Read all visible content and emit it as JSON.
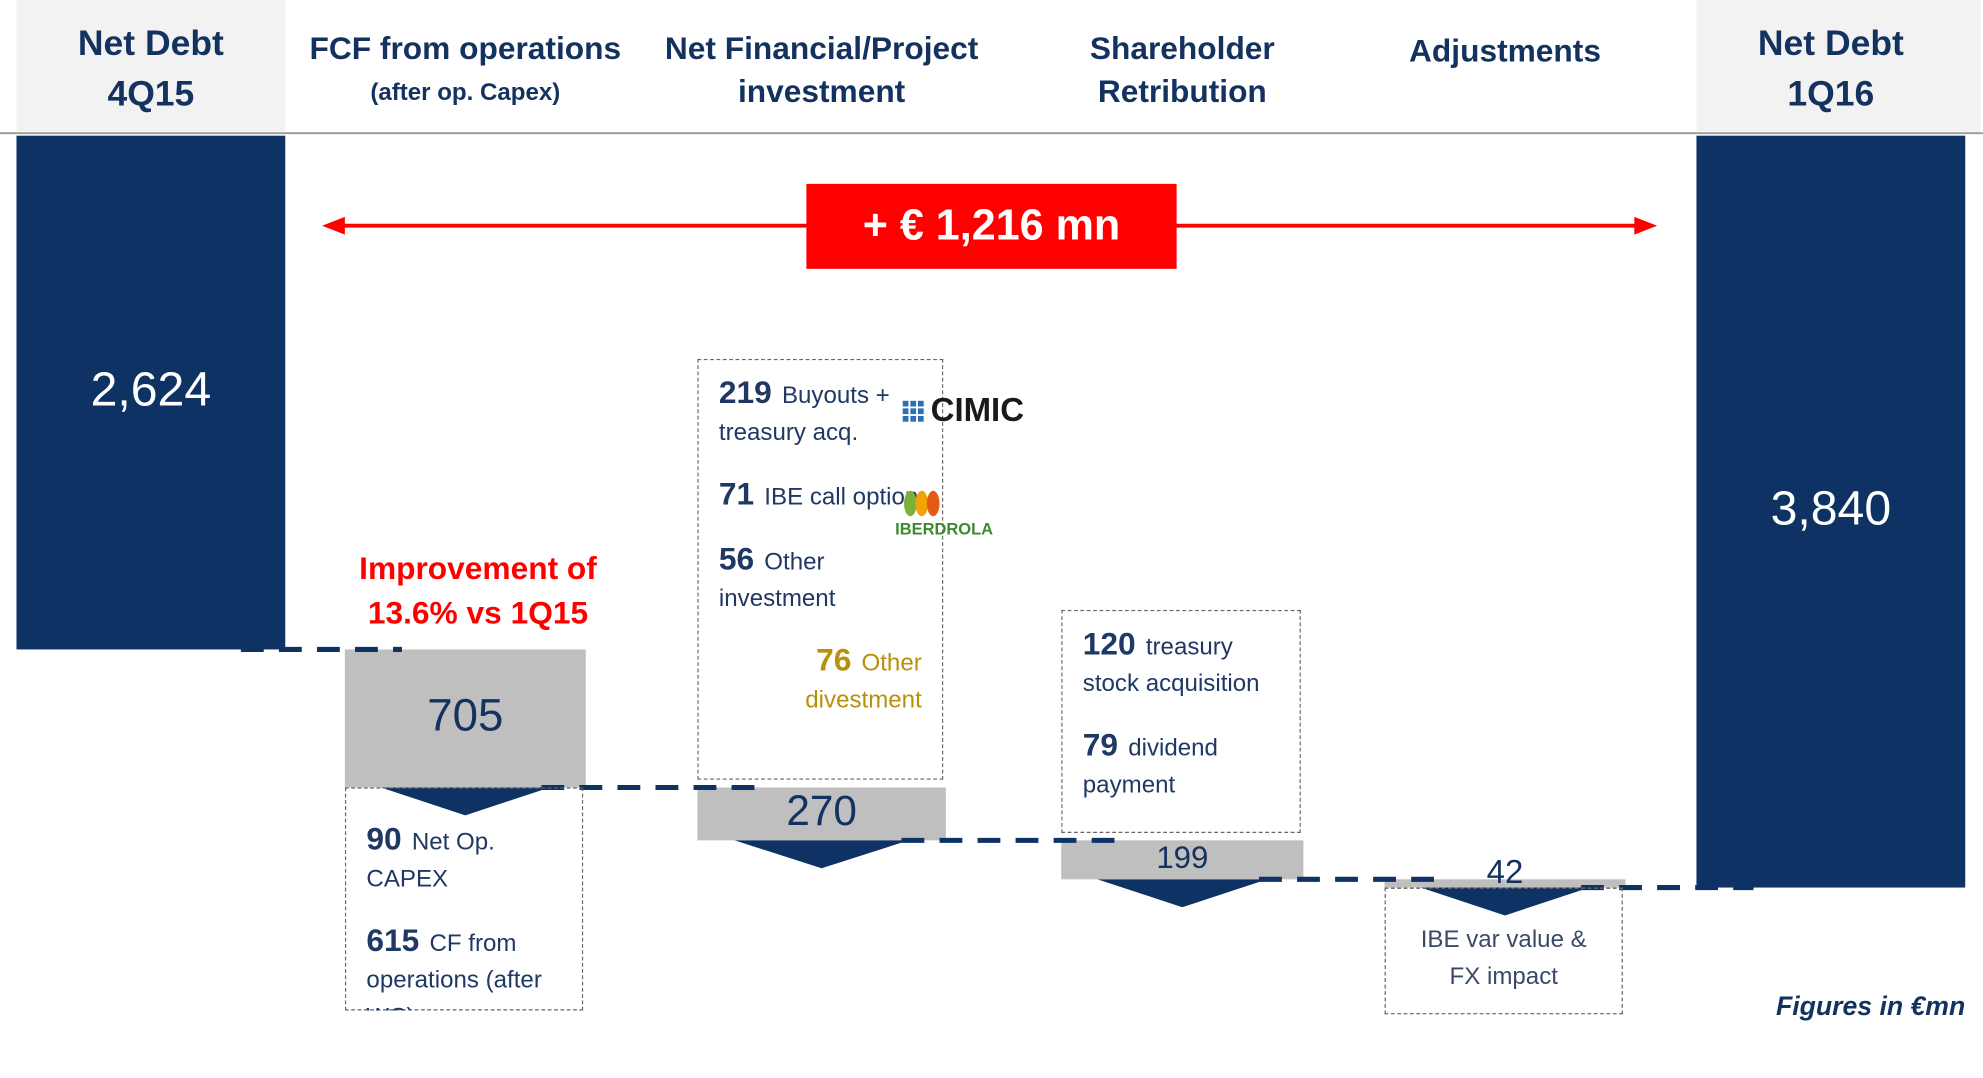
{
  "chart_data": {
    "type": "waterfall",
    "categories": [
      [
        "Net Debt",
        "4Q15"
      ],
      [
        "FCF from operations",
        "(after op. Capex)"
      ],
      [
        "Net Financial/Project",
        "investment"
      ],
      [
        "Shareholder",
        "Retribution"
      ],
      [
        "Adjustments"
      ],
      [
        "Net Debt",
        "1Q16"
      ]
    ],
    "values": [
      2624,
      705,
      270,
      199,
      42,
      3840
    ],
    "value_labels": [
      "2,624",
      "705",
      "270",
      "199",
      "42",
      "3,840"
    ],
    "totals": [
      true,
      false,
      false,
      false,
      false,
      true
    ],
    "total_color": "#0e3263",
    "step_color": "#bfbfbf",
    "change_label": "+ € 1,216 mn",
    "callout": [
      "Improvement of",
      "13.6% vs 1Q15"
    ],
    "notes": [
      null,
      [
        {
          "value": 90,
          "text": "Net Op. CAPEX"
        },
        {
          "value": 615,
          "text": "CF from operations (after WC)"
        }
      ],
      [
        {
          "value": 219,
          "text": "Buyouts + treasury acq."
        },
        {
          "value": 71,
          "text": "IBE call option"
        },
        {
          "value": 56,
          "text": "Other investment"
        },
        {
          "value": 76,
          "text": "Other divestment",
          "color": "#b8900a"
        }
      ],
      [
        {
          "value": 120,
          "text": "treasury stock acquisition"
        },
        {
          "value": 79,
          "text": "dividend payment"
        }
      ],
      [
        {
          "text": "IBE var value & FX impact"
        }
      ],
      null
    ],
    "logos": [
      "CIMIC",
      "IBERDROLA"
    ],
    "footnote": "Figures in €mn"
  }
}
